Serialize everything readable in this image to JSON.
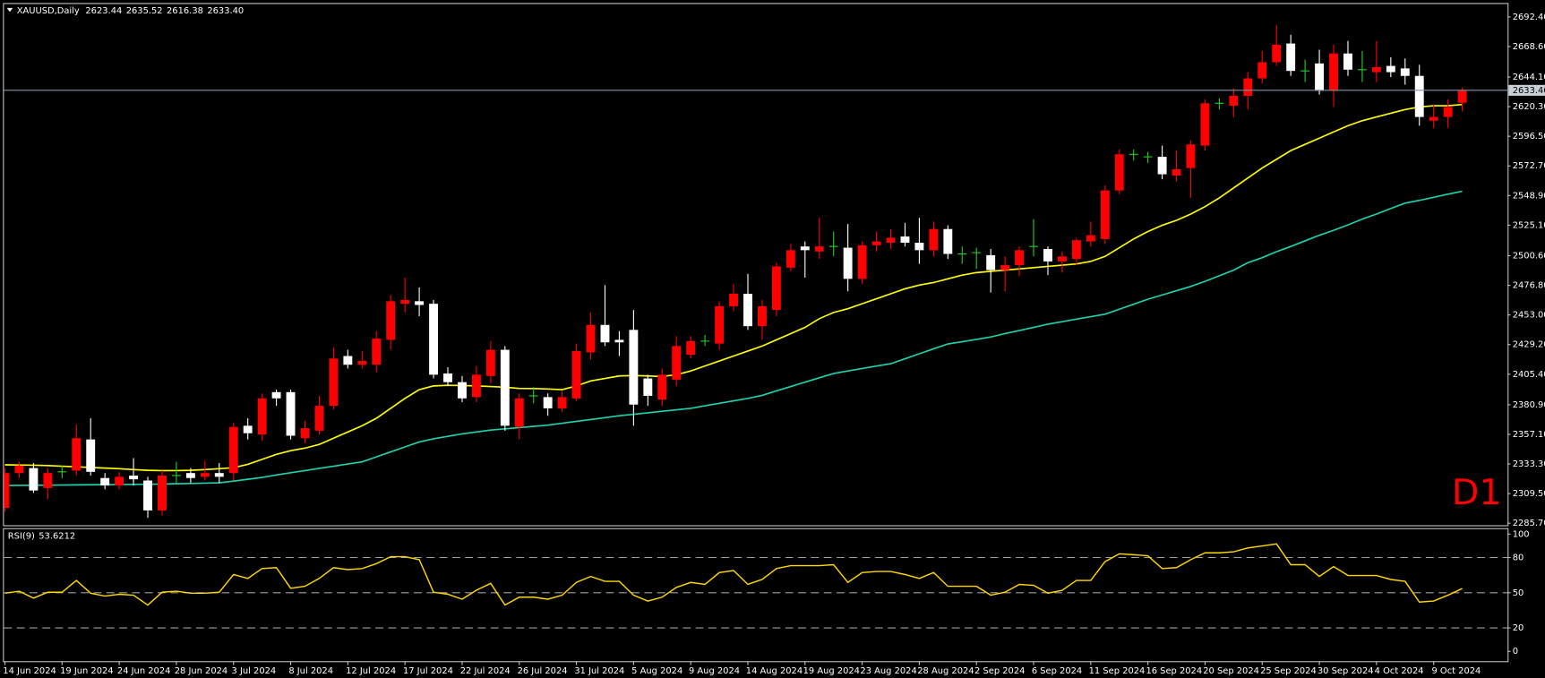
{
  "chart_data": {
    "type": "candlestick",
    "symbol": "XAUUSD,Daily",
    "last_bar_labels": [
      "2623.44",
      "2635.52",
      "2616.38",
      "2633.40"
    ],
    "watermark": "D1",
    "up_color": "#ff0000",
    "down_color": "#ffffff",
    "doji_color": "#22d022",
    "categories": [
      "14 Jun 2024",
      null,
      null,
      null,
      "19 Jun 2024",
      null,
      null,
      null,
      "24 Jun 2024",
      null,
      null,
      null,
      "28 Jun 2024",
      null,
      null,
      null,
      "3 Jul 2024",
      null,
      null,
      null,
      "8 Jul 2024",
      null,
      null,
      null,
      "12 Jul 2024",
      null,
      null,
      null,
      "17 Jul 2024",
      null,
      null,
      null,
      "22 Jul 2024",
      null,
      null,
      null,
      "26 Jul 2024",
      null,
      null,
      null,
      "31 Jul 2024",
      null,
      null,
      null,
      "5 Aug 2024",
      null,
      null,
      null,
      "9 Aug 2024",
      null,
      null,
      null,
      "14 Aug 2024",
      null,
      null,
      null,
      "19 Aug 2024",
      null,
      null,
      null,
      "23 Aug 2024",
      null,
      null,
      null,
      "28 Aug 2024",
      null,
      null,
      null,
      "2 Sep 2024",
      null,
      null,
      null,
      "6 Sep 2024",
      null,
      null,
      null,
      "11 Sep 2024",
      null,
      null,
      null,
      "16 Sep 2024",
      null,
      null,
      null,
      "20 Sep 2024",
      null,
      null,
      null,
      "25 Sep 2024",
      null,
      null,
      null,
      "30 Sep 2024",
      null,
      null,
      null,
      "4 Oct 2024",
      null,
      null,
      null,
      "9 Oct 2024",
      null,
      null
    ],
    "open": [
      2298,
      2326,
      2330,
      2314,
      2327,
      2328,
      2353,
      2322,
      2316,
      2324,
      2320,
      2296,
      2324,
      2326,
      2323,
      2326,
      2326,
      2364,
      2357,
      2391,
      2391,
      2354,
      2360,
      2380,
      2420,
      2413,
      2413,
      2433,
      2462,
      2464,
      2462,
      2406,
      2399,
      2387,
      2404,
      2425,
      2363,
      2388,
      2387,
      2378,
      2386,
      2423,
      2445,
      2433,
      2441,
      2402,
      2385,
      2401,
      2421,
      2432,
      2430,
      2460,
      2470,
      2444,
      2457,
      2491,
      2508,
      2504,
      2508,
      2507,
      2482,
      2509,
      2511,
      2516,
      2511,
      2505,
      2522,
      2502,
      2503,
      2501,
      2489,
      2493,
      2508,
      2506,
      2496,
      2498,
      2512,
      2514,
      2553,
      2582,
      2580,
      2580,
      2565,
      2571,
      2589,
      2623,
      2621,
      2629,
      2643,
      2656,
      2671,
      2649,
      2655,
      2633,
      2663,
      2650,
      2648,
      2653,
      2651,
      2645,
      2609,
      2612,
      2623.44
    ],
    "high": [
      2330,
      2335,
      2334,
      2330,
      2332,
      2365,
      2370,
      2326,
      2327,
      2338,
      2323,
      2328,
      2335,
      2330,
      2336,
      2334,
      2366,
      2370,
      2390,
      2393,
      2393,
      2368,
      2388,
      2427,
      2425,
      2424,
      2440,
      2469,
      2483,
      2475,
      2465,
      2411,
      2404,
      2412,
      2432,
      2428,
      2390,
      2395,
      2390,
      2392,
      2430,
      2455,
      2477,
      2440,
      2457,
      2405,
      2410,
      2436,
      2436,
      2437,
      2464,
      2478,
      2486,
      2465,
      2495,
      2510,
      2512,
      2531,
      2520,
      2526,
      2512,
      2520,
      2522,
      2527,
      2531,
      2528,
      2525,
      2508,
      2507,
      2506,
      2500,
      2508,
      2530,
      2508,
      2504,
      2515,
      2528,
      2557,
      2586,
      2586,
      2584,
      2589,
      2585,
      2593,
      2626,
      2627,
      2635,
      2648,
      2665,
      2686,
      2678,
      2658,
      2666,
      2670,
      2673,
      2665,
      2673,
      2660,
      2659,
      2654,
      2622,
      2626,
      2635.52
    ],
    "low": [
      2295,
      2322,
      2310,
      2305,
      2322,
      2324,
      2324,
      2313,
      2313,
      2316,
      2290,
      2292,
      2318,
      2318,
      2320,
      2318,
      2320,
      2353,
      2352,
      2380,
      2353,
      2350,
      2357,
      2377,
      2410,
      2410,
      2407,
      2425,
      2455,
      2452,
      2402,
      2396,
      2383,
      2383,
      2398,
      2360,
      2353,
      2382,
      2372,
      2375,
      2384,
      2417,
      2428,
      2420,
      2364,
      2380,
      2380,
      2396,
      2418,
      2428,
      2425,
      2456,
      2441,
      2433,
      2452,
      2488,
      2483,
      2498,
      2500,
      2472,
      2478,
      2504,
      2506,
      2508,
      2494,
      2500,
      2498,
      2494,
      2490,
      2471,
      2472,
      2484,
      2500,
      2485,
      2487,
      2493,
      2508,
      2510,
      2550,
      2577,
      2575,
      2562,
      2560,
      2547,
      2585,
      2618,
      2612,
      2618,
      2639,
      2653,
      2645,
      2640,
      2630,
      2620,
      2645,
      2640,
      2640,
      2644,
      2638,
      2605,
      2603,
      2603,
      2616.38
    ],
    "close": [
      2326,
      2332,
      2312,
      2326,
      2327,
      2354,
      2327,
      2316,
      2323,
      2321,
      2296,
      2324,
      2324,
      2322,
      2326,
      2323,
      2363,
      2358,
      2386,
      2386,
      2356,
      2362,
      2380,
      2418,
      2413,
      2416,
      2434,
      2464,
      2465,
      2461,
      2405,
      2399,
      2386,
      2405,
      2425,
      2364,
      2386,
      2388,
      2378,
      2387,
      2424,
      2445,
      2431,
      2431,
      2381,
      2388,
      2405,
      2428,
      2432,
      2432,
      2460,
      2470,
      2444,
      2460,
      2492,
      2505,
      2505,
      2508,
      2508,
      2482,
      2509,
      2512,
      2515,
      2511,
      2505,
      2522,
      2502,
      2502,
      2503,
      2489,
      2493,
      2505,
      2508,
      2496,
      2500,
      2513,
      2517,
      2553,
      2582,
      2582,
      2580,
      2566,
      2570,
      2590,
      2623,
      2623,
      2629,
      2643,
      2656,
      2670,
      2649,
      2649,
      2633,
      2663,
      2650,
      2650,
      2652,
      2648,
      2645,
      2612,
      2612,
      2620,
      2633.4
    ],
    "moving_averages": [
      {
        "color": "#ffff00",
        "values": [
          2332.6,
          2332.5,
          2332.3,
          2332,
          2331.5,
          2331,
          2330.5,
          2330,
          2329.5,
          2328.8,
          2328.2,
          2328,
          2328,
          2328.2,
          2328.8,
          2329.5,
          2330.3,
          2333,
          2337,
          2341,
          2344,
          2346,
          2349,
          2354,
          2359,
          2364,
          2370,
          2378,
          2386,
          2393,
          2396,
          2396.5,
          2396.3,
          2396,
          2395.5,
          2395,
          2394,
          2393.9,
          2393.5,
          2393,
          2396,
          2400,
          2402,
          2404,
          2404.3,
          2404,
          2403.5,
          2405,
          2408,
          2412,
          2416,
          2420,
          2424,
          2428,
          2433,
          2438,
          2443,
          2450,
          2455,
          2458,
          2462,
          2466,
          2470,
          2474,
          2477,
          2479,
          2482,
          2485,
          2487,
          2488,
          2489,
          2490,
          2491,
          2492,
          2493,
          2494,
          2496,
          2500,
          2507,
          2514,
          2520,
          2525,
          2529,
          2534,
          2540,
          2547,
          2555,
          2563,
          2571,
          2578,
          2585,
          2590,
          2595,
          2600,
          2605,
          2609,
          2612,
          2615,
          2618,
          2620,
          2621,
          2621,
          2622
        ]
      },
      {
        "color": "#1ed2ac",
        "values": [
          2316,
          2316.1,
          2316.2,
          2316.3,
          2316.4,
          2316.5,
          2316.6,
          2316.7,
          2316.8,
          2316.9,
          2317,
          2317.2,
          2317.4,
          2317.6,
          2317.9,
          2318.2,
          2319.5,
          2321,
          2322.5,
          2324.5,
          2326.3,
          2328,
          2329.8,
          2331.5,
          2333.3,
          2335,
          2339,
          2343,
          2347,
          2351,
          2353.5,
          2355.5,
          2357.5,
          2359,
          2360.5,
          2361.5,
          2362.5,
          2363.5,
          2364.5,
          2366,
          2367.5,
          2369,
          2370.5,
          2372,
          2373.2,
          2374.4,
          2375.6,
          2376.8,
          2378,
          2380,
          2382,
          2384,
          2386,
          2388.4,
          2392,
          2395.5,
          2399,
          2402.5,
          2405.9,
          2408,
          2410,
          2412,
          2413.8,
          2417.8,
          2421.8,
          2425.8,
          2429.7,
          2431.5,
          2433.4,
          2435.3,
          2438,
          2440.5,
          2443,
          2445.6,
          2447.6,
          2449.6,
          2451.6,
          2453.6,
          2457.6,
          2461.6,
          2465.6,
          2469,
          2472.5,
          2475.9,
          2480,
          2484.5,
          2489,
          2495,
          2499,
          2503.8,
          2508,
          2512.5,
          2517,
          2521,
          2525.3,
          2530,
          2534,
          2538.5,
          2542.8,
          2545,
          2547.5,
          2550,
          2552.3
        ]
      }
    ],
    "ylim": [
      2284.1,
      2702.75
    ],
    "yticks": [
      {
        "value": 2692.4,
        "label": "2692.40"
      },
      {
        "value": 2668.6,
        "label": "2668.60"
      },
      {
        "value": 2644.1,
        "label": "2644.10"
      },
      {
        "value": 2620.3,
        "label": "2620.30"
      },
      {
        "value": 2596.5,
        "label": "2596.50"
      },
      {
        "value": 2572.7,
        "label": "2572.70"
      },
      {
        "value": 2548.9,
        "label": "2548.90"
      },
      {
        "value": 2525.1,
        "label": "2525.10"
      },
      {
        "value": 2500.6,
        "label": "2500.60"
      },
      {
        "value": 2476.8,
        "label": "2476.80"
      },
      {
        "value": 2453.0,
        "label": "2453.00"
      },
      {
        "value": 2429.2,
        "label": "2429.20"
      },
      {
        "value": 2405.4,
        "label": "2405.40"
      },
      {
        "value": 2380.9,
        "label": "2380.90"
      },
      {
        "value": 2357.1,
        "label": "2357.10"
      },
      {
        "value": 2333.3,
        "label": "2333.30"
      },
      {
        "value": 2309.5,
        "label": "2309.50"
      },
      {
        "value": 2285.7,
        "label": "2285.70"
      }
    ],
    "last_price": {
      "value": 2633.4,
      "label": "2633.40"
    },
    "indicator": {
      "title": "RSI(9)",
      "color": "#ffd700",
      "values": [
        49.6,
        51.3,
        45.4,
        50.4,
        50.4,
        60.5,
        49.6,
        47.1,
        48.7,
        47.9,
        39.5,
        50.4,
        51.3,
        49.6,
        49.6,
        50.4,
        65.5,
        62.2,
        70.6,
        71.4,
        53.8,
        55.5,
        62.2,
        71.4,
        69.7,
        70.6,
        74.8,
        80.7,
        80.7,
        78.2,
        50.4,
        48.7,
        44.5,
        52.1,
        58.0,
        39.5,
        46.2,
        46.2,
        44.5,
        47.9,
        58.8,
        63.9,
        59.7,
        59.7,
        47.9,
        42.9,
        46.2,
        54.6,
        58.8,
        57.1,
        67.2,
        68.9,
        57.1,
        61.3,
        70.6,
        73.1,
        73.1,
        73.1,
        73.9,
        58.8,
        67.2,
        68.1,
        68.1,
        65.5,
        62.2,
        67.2,
        55.5,
        55.5,
        55.5,
        47.9,
        50.4,
        57.1,
        56.3,
        49.6,
        52.1,
        60.5,
        60.5,
        76.5,
        83.2,
        82.4,
        81.5,
        70.6,
        71.4,
        78.2,
        84.0,
        84.0,
        84.9,
        88.2,
        89.9,
        91.6,
        73.9,
        73.9,
        63.9,
        72.3,
        64.7,
        64.7,
        64.7,
        61.3,
        59.7,
        42.0,
        42.9,
        47.9,
        53.6212
      ],
      "ylim": [
        -8.4,
        104.2
      ],
      "yticks": [
        100,
        80,
        50,
        20,
        0
      ],
      "levels": [
        80,
        50,
        20
      ]
    }
  }
}
